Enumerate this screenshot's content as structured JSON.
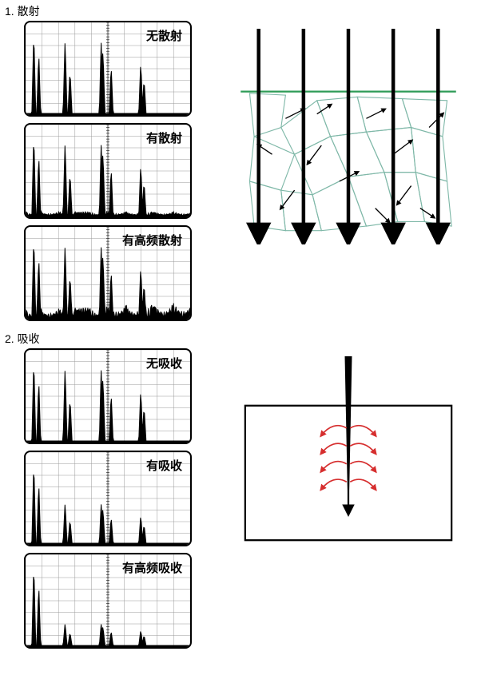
{
  "sections": [
    {
      "index": "1.",
      "title": "散射"
    },
    {
      "index": "2.",
      "title": "吸收"
    }
  ],
  "scatter": {
    "charts": [
      {
        "label": "无散射",
        "noise_level": 0.0,
        "noise_bias": 0.0
      },
      {
        "label": "有散射",
        "noise_level": 0.15,
        "noise_bias": 0.0
      },
      {
        "label": "有高频散射",
        "noise_level": 0.3,
        "noise_bias": 0.3
      }
    ],
    "peaks": [
      {
        "x": 0.05,
        "h": 0.95
      },
      {
        "x": 0.08,
        "h": 0.7
      },
      {
        "x": 0.24,
        "h": 0.85
      },
      {
        "x": 0.27,
        "h": 0.5
      },
      {
        "x": 0.46,
        "h": 0.85
      },
      {
        "x": 0.47,
        "h": 0.75
      },
      {
        "x": 0.52,
        "h": 0.55
      },
      {
        "x": 0.7,
        "h": 0.6
      },
      {
        "x": 0.72,
        "h": 0.4
      }
    ],
    "diagram": {
      "beam_count": 5,
      "beam_color": "#000000",
      "surface_color": "#2e9b57",
      "grain_color": "#7fb8a8",
      "arrow_color": "#000000"
    }
  },
  "absorb": {
    "charts": [
      {
        "label": "无吸收",
        "atten": 1.0
      },
      {
        "label": "有吸收",
        "atten": 0.55
      },
      {
        "label": "有高频吸收",
        "atten": 0.3
      }
    ],
    "peaks": [
      {
        "x": 0.05,
        "h": 0.95,
        "fixed": true
      },
      {
        "x": 0.08,
        "h": 0.7,
        "fixed": true
      },
      {
        "x": 0.24,
        "h": 0.85
      },
      {
        "x": 0.27,
        "h": 0.5
      },
      {
        "x": 0.46,
        "h": 0.85
      },
      {
        "x": 0.47,
        "h": 0.75
      },
      {
        "x": 0.52,
        "h": 0.55
      },
      {
        "x": 0.7,
        "h": 0.6
      },
      {
        "x": 0.72,
        "h": 0.4
      }
    ],
    "diagram": {
      "probe_color": "#000000",
      "box_border": "#000000",
      "heat_color": "#d62e2e"
    }
  },
  "style": {
    "scope_bg": "#ffffff",
    "scope_border": "#000000",
    "grid_minor": "#999999",
    "grid_major": "#333333",
    "signal_color": "#000000",
    "label_fontsize": 15
  }
}
